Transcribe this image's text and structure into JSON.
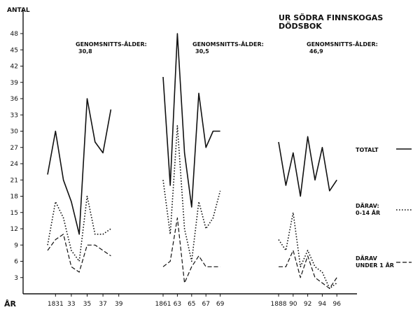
{
  "chart_data": {
    "type": "line",
    "title": "UR SÖDRA FINNSKOGAS DÖDSBOK",
    "ylabel": "ANTAL",
    "xlabel": "ÅR",
    "ylim": [
      0,
      50
    ],
    "yticks": [
      3,
      6,
      9,
      12,
      15,
      18,
      21,
      24,
      27,
      30,
      33,
      36,
      39,
      42,
      45,
      48
    ],
    "grid": false,
    "legend_placement": "right",
    "panels": [
      {
        "annotation": "GENOMSNITTS-ÅLDER: 30,8",
        "x_tick_labels": [
          "1831",
          "33",
          "35",
          "37",
          "39"
        ],
        "x": [
          1830,
          1831,
          1832,
          1833,
          1834,
          1835,
          1836,
          1837,
          1838,
          1839
        ],
        "series": [
          {
            "name": "TOTALT",
            "style": "solid",
            "values": [
              22,
              30,
              21,
              17,
              11,
              36,
              28,
              26,
              34,
              null
            ]
          },
          {
            "name": "DÄRAV: 0-14 ÅR",
            "style": "dotted",
            "values": [
              9,
              17,
              14,
              8,
              6,
              18,
              11,
              11,
              12,
              null
            ]
          },
          {
            "name": "DÄRAV UNDER 1 ÅR",
            "style": "dashed",
            "values": [
              8,
              10,
              11,
              5,
              4,
              9,
              9,
              8,
              7,
              null
            ]
          }
        ]
      },
      {
        "annotation": "GENOMSNITTS-ÅLDER: 30,5",
        "x_tick_labels": [
          "1861",
          "63",
          "65",
          "67",
          "69"
        ],
        "x": [
          1861,
          1862,
          1863,
          1864,
          1865,
          1866,
          1867,
          1868,
          1869
        ],
        "series": [
          {
            "name": "TOTALT",
            "style": "solid",
            "values": [
              40,
              20,
              48,
              26,
              16,
              37,
              27,
              30,
              30
            ]
          },
          {
            "name": "DÄRAV: 0-14 ÅR",
            "style": "dotted",
            "values": [
              21,
              11,
              31,
              12,
              6,
              17,
              12,
              14,
              19
            ]
          },
          {
            "name": "DÄRAV UNDER 1 ÅR",
            "style": "dashed",
            "values": [
              5,
              6,
              14,
              2,
              5,
              7,
              5,
              5,
              5
            ]
          }
        ]
      },
      {
        "annotation": "GENOMSNITTS-ÅLDER: 46,9",
        "x_tick_labels": [
          "1888",
          "90",
          "92",
          "94",
          "96"
        ],
        "x": [
          1888,
          1889,
          1890,
          1891,
          1892,
          1893,
          1894,
          1895,
          1896
        ],
        "series": [
          {
            "name": "TOTALT",
            "style": "solid",
            "values": [
              28,
              20,
              26,
              18,
              29,
              21,
              27,
              19,
              21
            ]
          },
          {
            "name": "DÄRAV: 0-14 ÅR",
            "style": "dotted",
            "values": [
              10,
              8,
              15,
              5,
              8,
              5,
              4,
              1,
              2
            ]
          },
          {
            "name": "DÄRAV UNDER 1 ÅR",
            "style": "dashed",
            "values": [
              5,
              5,
              8,
              3,
              7,
              3,
              2,
              1,
              3
            ]
          }
        ]
      }
    ],
    "legend": [
      {
        "label_lines": [
          "TOTALT"
        ],
        "style": "solid"
      },
      {
        "label_lines": [
          "DÄRAV:",
          "0-14 ÅR"
        ],
        "style": "dotted"
      },
      {
        "label_lines": [
          "DÄRAV",
          "UNDER 1 ÅR"
        ],
        "style": "dashed"
      }
    ]
  }
}
